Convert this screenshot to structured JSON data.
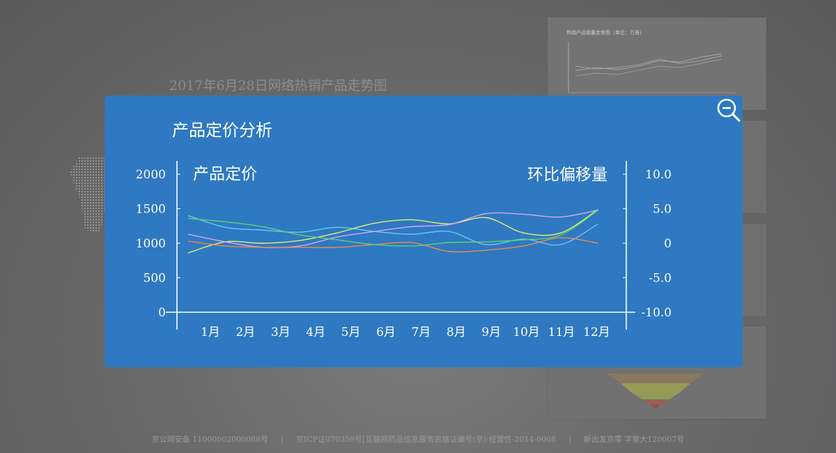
{
  "background": {
    "title": "2017年6月28日网络热销产品走势图",
    "mini_chart_title": "热销产品销量走势图（单位：万册）"
  },
  "footer": {
    "items": [
      "京公网安备 11000002000088号",
      "|",
      "京ICP证070359号[互联网药品信息服务资格证编号(京)-经营性-2014-0008",
      "|",
      "新出发京零 字第大120007号"
    ]
  },
  "modal": {
    "title": "产品定价分析",
    "zoom_icon": "zoom-out-icon",
    "background_color": "#2e79c2"
  },
  "chart_data": {
    "type": "line",
    "y_left_label": "产品定价",
    "y_right_label": "环比偏移量",
    "categories": [
      "1月",
      "2月",
      "3月",
      "4月",
      "5月",
      "6月",
      "7月",
      "8月",
      "9月",
      "10月",
      "11月",
      "12月"
    ],
    "y_left_ticks": [
      "0",
      "500",
      "1000",
      "1500",
      "2000"
    ],
    "y_right_ticks": [
      "-10.0",
      "-5.0",
      "0",
      "5.0",
      "10.0"
    ],
    "ylim_left": [
      0,
      2000
    ],
    "ylim_right": [
      -10,
      10
    ],
    "grid": false,
    "series": [
      {
        "color": "#6ec6f5",
        "values": [
          1400,
          1230,
          1190,
          1160,
          1230,
          1170,
          1130,
          1170,
          980,
          1060,
          980,
          1280
        ]
      },
      {
        "color": "#e7f06b",
        "values": [
          860,
          1020,
          1000,
          1040,
          1150,
          1290,
          1340,
          1280,
          1370,
          1150,
          1150,
          1490
        ]
      },
      {
        "color": "#d8a5f0",
        "values": [
          1130,
          1020,
          940,
          960,
          1090,
          1170,
          1240,
          1270,
          1430,
          1420,
          1380,
          1480
        ]
      },
      {
        "color": "#f08a4b",
        "values": [
          1030,
          960,
          940,
          940,
          940,
          980,
          1010,
          880,
          900,
          960,
          1080,
          1000
        ]
      },
      {
        "color": "#5fd46a",
        "values": [
          1360,
          1310,
          1240,
          1120,
          1050,
          980,
          960,
          1010,
          1020,
          1050,
          1120,
          1480
        ]
      }
    ]
  }
}
